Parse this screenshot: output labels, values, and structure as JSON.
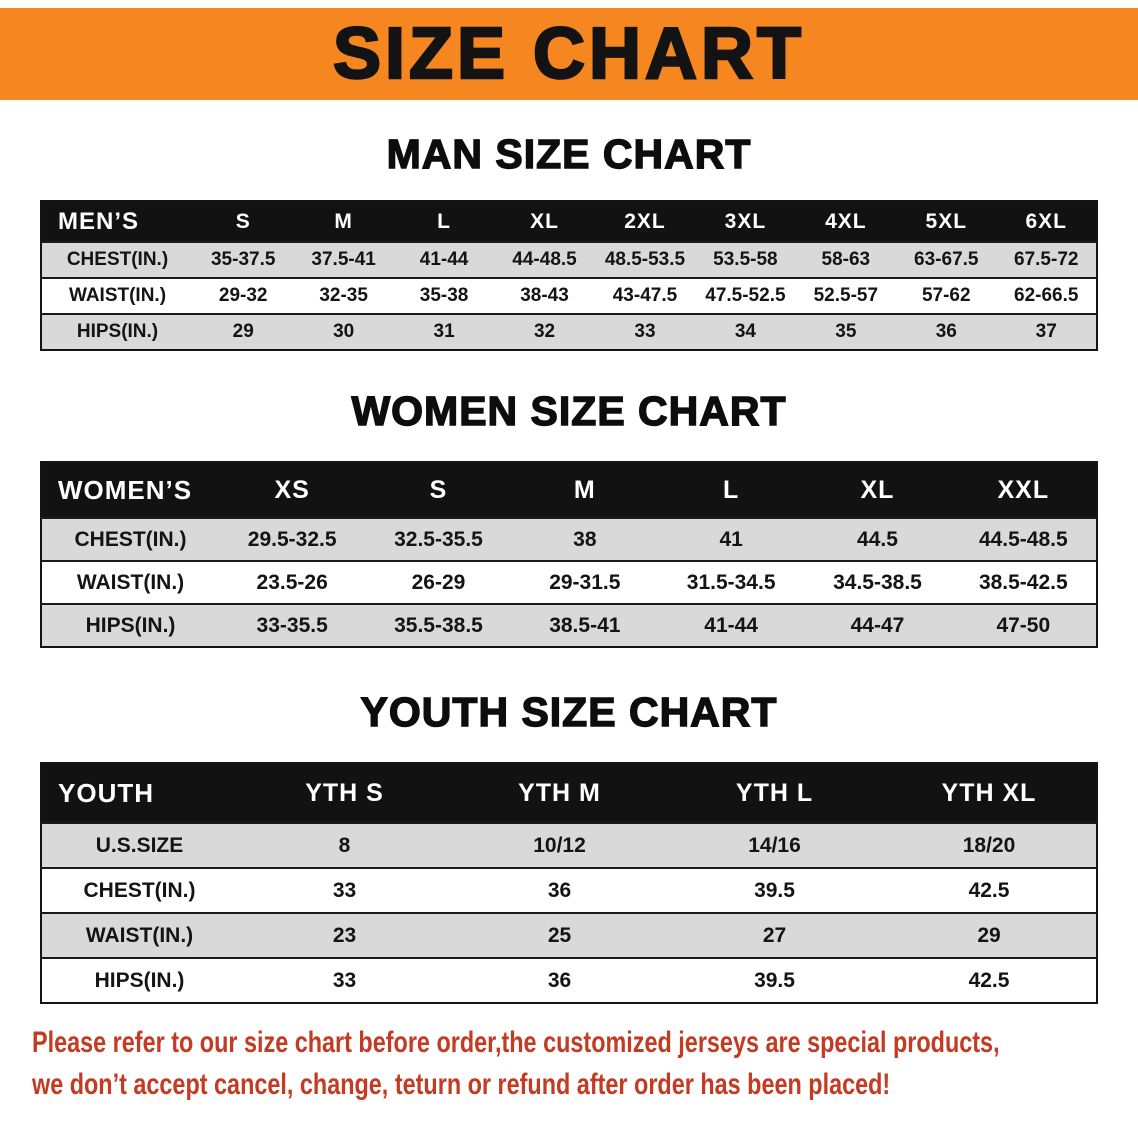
{
  "banner": {
    "title": "SIZE CHART"
  },
  "colors": {
    "banner_bg": "#F6861F",
    "banner_text": "#131313",
    "table_header_bg": "#121212",
    "table_header_text": "#FFFFFF",
    "row_stripe": "#D9D9D9",
    "disclaimer_text": "#C23B22"
  },
  "sections": [
    {
      "id": "men",
      "heading": "MAN SIZE CHART",
      "table": {
        "header": [
          "MEN’S",
          "S",
          "M",
          "L",
          "XL",
          "2XL",
          "3XL",
          "4XL",
          "5XL",
          "6XL"
        ],
        "rows": [
          [
            "CHEST(IN.)",
            "35-37.5",
            "37.5-41",
            "41-44",
            "44-48.5",
            "48.5-53.5",
            "53.5-58",
            "58-63",
            "63-67.5",
            "67.5-72"
          ],
          [
            "WAIST(IN.)",
            "29-32",
            "32-35",
            "35-38",
            "38-43",
            "43-47.5",
            "47.5-52.5",
            "52.5-57",
            "57-62",
            "62-66.5"
          ],
          [
            "HIPS(IN.)",
            "29",
            "30",
            "31",
            "32",
            "33",
            "34",
            "35",
            "36",
            "37"
          ]
        ]
      }
    },
    {
      "id": "women",
      "heading": "WOMEN SIZE CHART",
      "table": {
        "header": [
          "WOMEN’S",
          "XS",
          "S",
          "M",
          "L",
          "XL",
          "XXL"
        ],
        "rows": [
          [
            "CHEST(IN.)",
            "29.5-32.5",
            "32.5-35.5",
            "38",
            "41",
            "44.5",
            "44.5-48.5"
          ],
          [
            "WAIST(IN.)",
            "23.5-26",
            "26-29",
            "29-31.5",
            "31.5-34.5",
            "34.5-38.5",
            "38.5-42.5"
          ],
          [
            "HIPS(IN.)",
            "33-35.5",
            "35.5-38.5",
            "38.5-41",
            "41-44",
            "44-47",
            "47-50"
          ]
        ]
      }
    },
    {
      "id": "youth",
      "heading": "YOUTH SIZE CHART",
      "table": {
        "header": [
          "YOUTH",
          "YTH S",
          "YTH M",
          "YTH L",
          "YTH XL"
        ],
        "rows": [
          [
            "U.S.SIZE",
            "8",
            "10/12",
            "14/16",
            "18/20"
          ],
          [
            "CHEST(IN.)",
            "33",
            "36",
            "39.5",
            "42.5"
          ],
          [
            "WAIST(IN.)",
            "23",
            "25",
            "27",
            "29"
          ],
          [
            "HIPS(IN.)",
            "33",
            "36",
            "39.5",
            "42.5"
          ]
        ]
      }
    }
  ],
  "disclaimer": {
    "line1": "Please refer to our size chart before order,the customized jerseys are special products,",
    "line2": "we don’t accept cancel, change, teturn or refund after order has been placed!"
  }
}
